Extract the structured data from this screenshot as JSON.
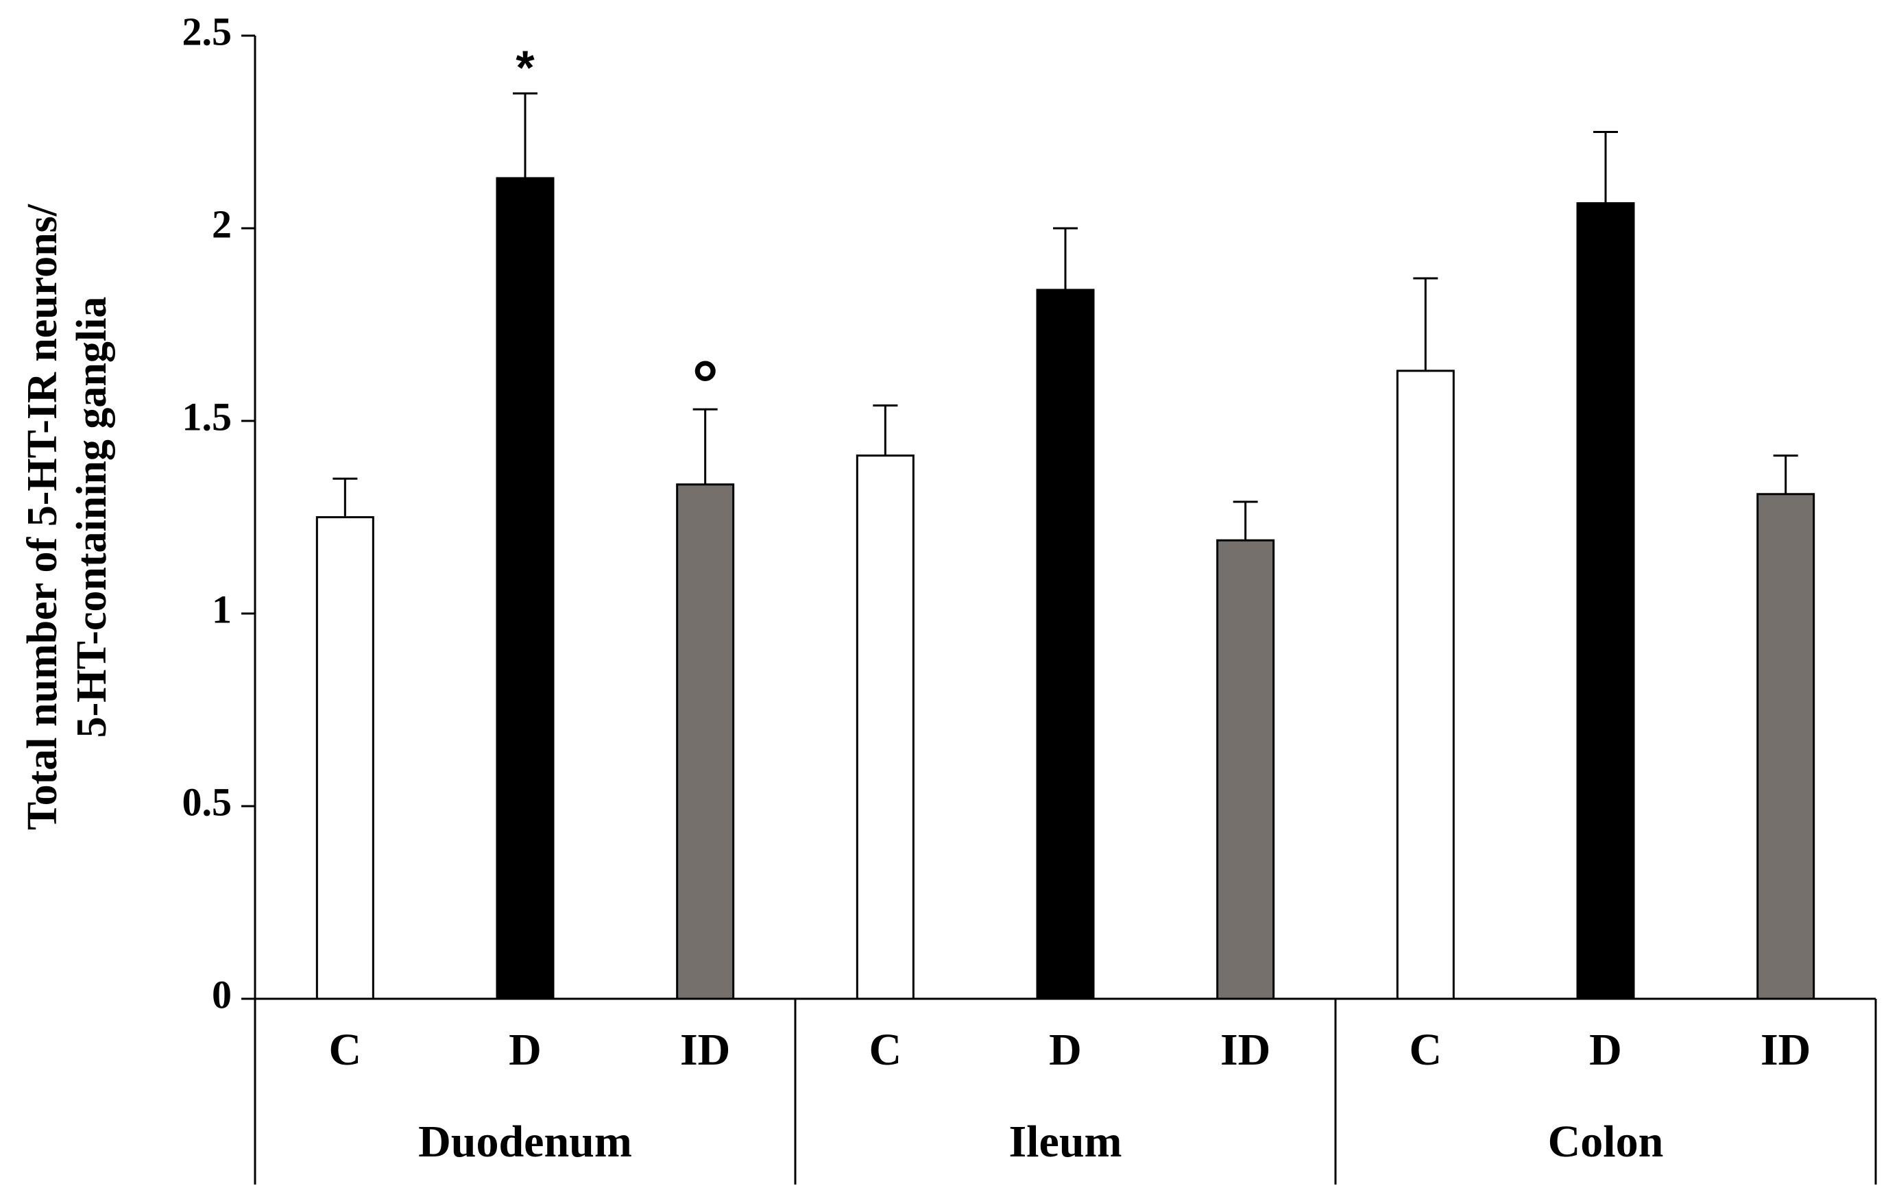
{
  "chart_data": {
    "type": "bar",
    "title": "",
    "ylabel_lines": [
      "Total number of 5-HT-IR neurons/",
      "5-HT-containing ganglia"
    ],
    "ylim": [
      0,
      2.5
    ],
    "yticks": [
      "0",
      "0.5",
      "1",
      "1.5",
      "2",
      "2.5"
    ],
    "ytick_values": [
      0,
      0.5,
      1,
      1.5,
      2,
      2.5
    ],
    "grid": false,
    "groups": [
      {
        "name": "Duodenum",
        "bars": [
          {
            "label": "C",
            "value": 1.25,
            "error": 0.1,
            "color": "#ffffff",
            "annotation": ""
          },
          {
            "label": "D",
            "value": 2.13,
            "error": 0.22,
            "color": "#000000",
            "annotation": "*"
          },
          {
            "label": "ID",
            "value": 1.335,
            "error": 0.195,
            "color": "#76706d",
            "annotation": "°"
          }
        ]
      },
      {
        "name": "Ileum",
        "bars": [
          {
            "label": "C",
            "value": 1.41,
            "error": 0.13,
            "color": "#ffffff",
            "annotation": ""
          },
          {
            "label": "D",
            "value": 1.84,
            "error": 0.16,
            "color": "#000000",
            "annotation": ""
          },
          {
            "label": "ID",
            "value": 1.19,
            "error": 0.1,
            "color": "#76706d",
            "annotation": ""
          }
        ]
      },
      {
        "name": "Colon",
        "bars": [
          {
            "label": "C",
            "value": 1.63,
            "error": 0.24,
            "color": "#ffffff",
            "annotation": ""
          },
          {
            "label": "D",
            "value": 2.065,
            "error": 0.185,
            "color": "#000000",
            "annotation": ""
          },
          {
            "label": "ID",
            "value": 1.31,
            "error": 0.1,
            "color": "#76706d",
            "annotation": ""
          }
        ]
      }
    ]
  }
}
